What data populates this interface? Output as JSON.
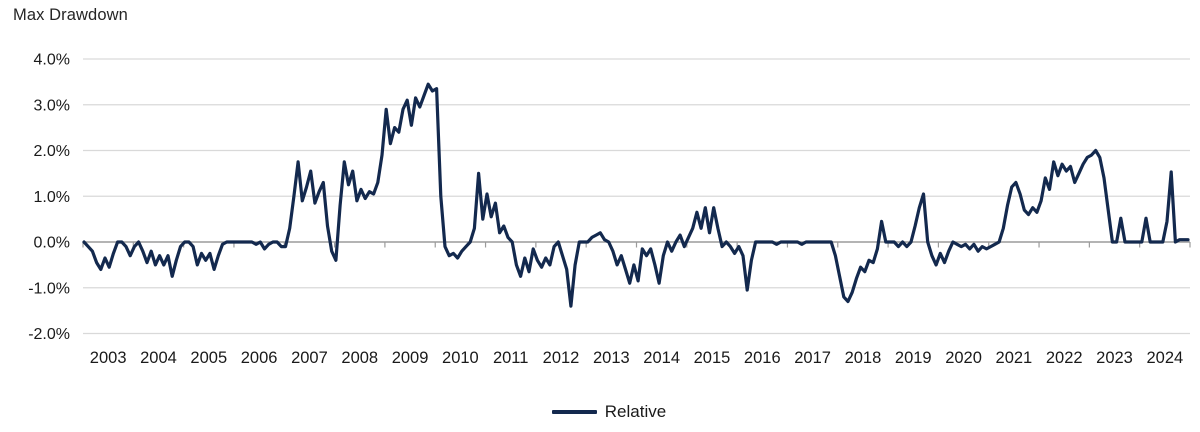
{
  "title": "Max Drawdown",
  "legend": {
    "items": [
      {
        "label": "Relative",
        "color": "#13294e"
      }
    ]
  },
  "colors": {
    "line": "#13294e",
    "gridline": "#d9d9d9",
    "zero_axis": "#9b9b9b",
    "text": "#1a1a1a",
    "background": "#ffffff"
  },
  "chart_data": {
    "type": "line",
    "title": "Max Drawdown",
    "xlabel": "",
    "ylabel": "",
    "x_unit": "month",
    "x_range": [
      "2003-01",
      "2024-12"
    ],
    "ylim": [
      -2.0,
      4.0
    ],
    "grid": "horizontal",
    "legend_position": "bottom-center",
    "y_gridlines": [
      4,
      3,
      2,
      1,
      0,
      -1,
      -2
    ],
    "y_tick_labels": [
      "4.0%",
      "3.0%",
      "2.0%",
      "1.0%",
      "0.0%",
      "-1.0%",
      "-2.0%"
    ],
    "x_tick_labels": [
      "2003",
      "2004",
      "2005",
      "2006",
      "2007",
      "2008",
      "2009",
      "2010",
      "2011",
      "2012",
      "2013",
      "2014",
      "2015",
      "2016",
      "2017",
      "2018",
      "2019",
      "2020",
      "2021",
      "2022",
      "2023",
      "2024"
    ],
    "series": [
      {
        "name": "Relative",
        "color": "#13294e",
        "values_pct_monthly_by_year": {
          "2003": [
            0.0,
            -0.1,
            -0.2,
            -0.45,
            -0.6,
            -0.35,
            -0.55,
            -0.25,
            0.0,
            0.0,
            -0.1,
            -0.3
          ],
          "2004": [
            -0.1,
            0.0,
            -0.2,
            -0.45,
            -0.2,
            -0.5,
            -0.3,
            -0.5,
            -0.3,
            -0.75,
            -0.4,
            -0.1
          ],
          "2005": [
            0.0,
            0.0,
            -0.1,
            -0.5,
            -0.25,
            -0.4,
            -0.25,
            -0.6,
            -0.3,
            -0.05,
            0.0,
            0.0
          ],
          "2006": [
            0.0,
            0.0,
            0.0,
            0.0,
            0.0,
            -0.05,
            0.0,
            -0.15,
            -0.05,
            0.0,
            0.0,
            -0.1
          ],
          "2007": [
            -0.1,
            0.3,
            1.0,
            1.75,
            0.9,
            1.2,
            1.55,
            0.85,
            1.1,
            1.3,
            0.35,
            -0.2
          ],
          "2008": [
            -0.4,
            0.8,
            1.75,
            1.25,
            1.55,
            0.9,
            1.15,
            0.95,
            1.1,
            1.05,
            1.3,
            1.9
          ],
          "2009": [
            2.9,
            2.15,
            2.5,
            2.4,
            2.9,
            3.1,
            2.55,
            3.15,
            2.95,
            3.2,
            3.45,
            3.3
          ],
          "2010": [
            3.35,
            1.0,
            -0.1,
            -0.3,
            -0.25,
            -0.35,
            -0.2,
            -0.1,
            0.0,
            0.3,
            1.5,
            0.5
          ],
          "2011": [
            1.05,
            0.55,
            0.85,
            0.2,
            0.35,
            0.1,
            0.0,
            -0.5,
            -0.75,
            -0.35,
            -0.65,
            -0.15
          ],
          "2012": [
            -0.4,
            -0.55,
            -0.35,
            -0.5,
            -0.1,
            0.0,
            -0.3,
            -0.6,
            -1.4,
            -0.5,
            0.0,
            0.0
          ],
          "2013": [
            0.0,
            0.1,
            0.15,
            0.2,
            0.05,
            0.0,
            -0.2,
            -0.5,
            -0.3,
            -0.6,
            -0.9,
            -0.5
          ],
          "2014": [
            -0.85,
            -0.15,
            -0.3,
            -0.15,
            -0.5,
            -0.9,
            -0.3,
            0.0,
            -0.2,
            0.0,
            0.15,
            -0.1
          ],
          "2015": [
            0.1,
            0.3,
            0.65,
            0.3,
            0.75,
            0.2,
            0.75,
            0.3,
            -0.1,
            0.0,
            -0.1,
            -0.25
          ],
          "2016": [
            -0.1,
            -0.3,
            -1.05,
            -0.4,
            0.0,
            0.0,
            0.0,
            0.0,
            0.0,
            -0.05,
            0.0,
            0.0
          ],
          "2017": [
            0.0,
            0.0,
            0.0,
            -0.05,
            0.0,
            0.0,
            0.0,
            0.0,
            0.0,
            0.0,
            0.0,
            -0.3
          ],
          "2018": [
            -0.75,
            -1.2,
            -1.3,
            -1.1,
            -0.8,
            -0.55,
            -0.65,
            -0.4,
            -0.45,
            -0.15,
            0.45,
            0.0
          ],
          "2019": [
            0.0,
            0.0,
            -0.1,
            0.0,
            -0.1,
            0.0,
            0.35,
            0.75,
            1.05,
            0.0,
            -0.3,
            -0.5
          ],
          "2020": [
            -0.25,
            -0.45,
            -0.2,
            0.0,
            -0.05,
            -0.1,
            -0.05,
            -0.15,
            -0.05,
            -0.2,
            -0.1,
            -0.15
          ],
          "2021": [
            -0.1,
            -0.05,
            0.0,
            0.3,
            0.8,
            1.2,
            1.3,
            1.05,
            0.7,
            0.6,
            0.75,
            0.65
          ],
          "2022": [
            0.9,
            1.4,
            1.15,
            1.75,
            1.45,
            1.7,
            1.55,
            1.65,
            1.3,
            1.5,
            1.7,
            1.85
          ],
          "2023": [
            1.9,
            2.0,
            1.85,
            1.4,
            0.7,
            0.0,
            0.0,
            0.52,
            0.0,
            0.0,
            0.0,
            0.0
          ],
          "2024": [
            0.0,
            0.52,
            0.0,
            0.0,
            0.0,
            0.0,
            0.45,
            1.53,
            0.0,
            0.05,
            0.05,
            0.05
          ]
        }
      }
    ]
  }
}
